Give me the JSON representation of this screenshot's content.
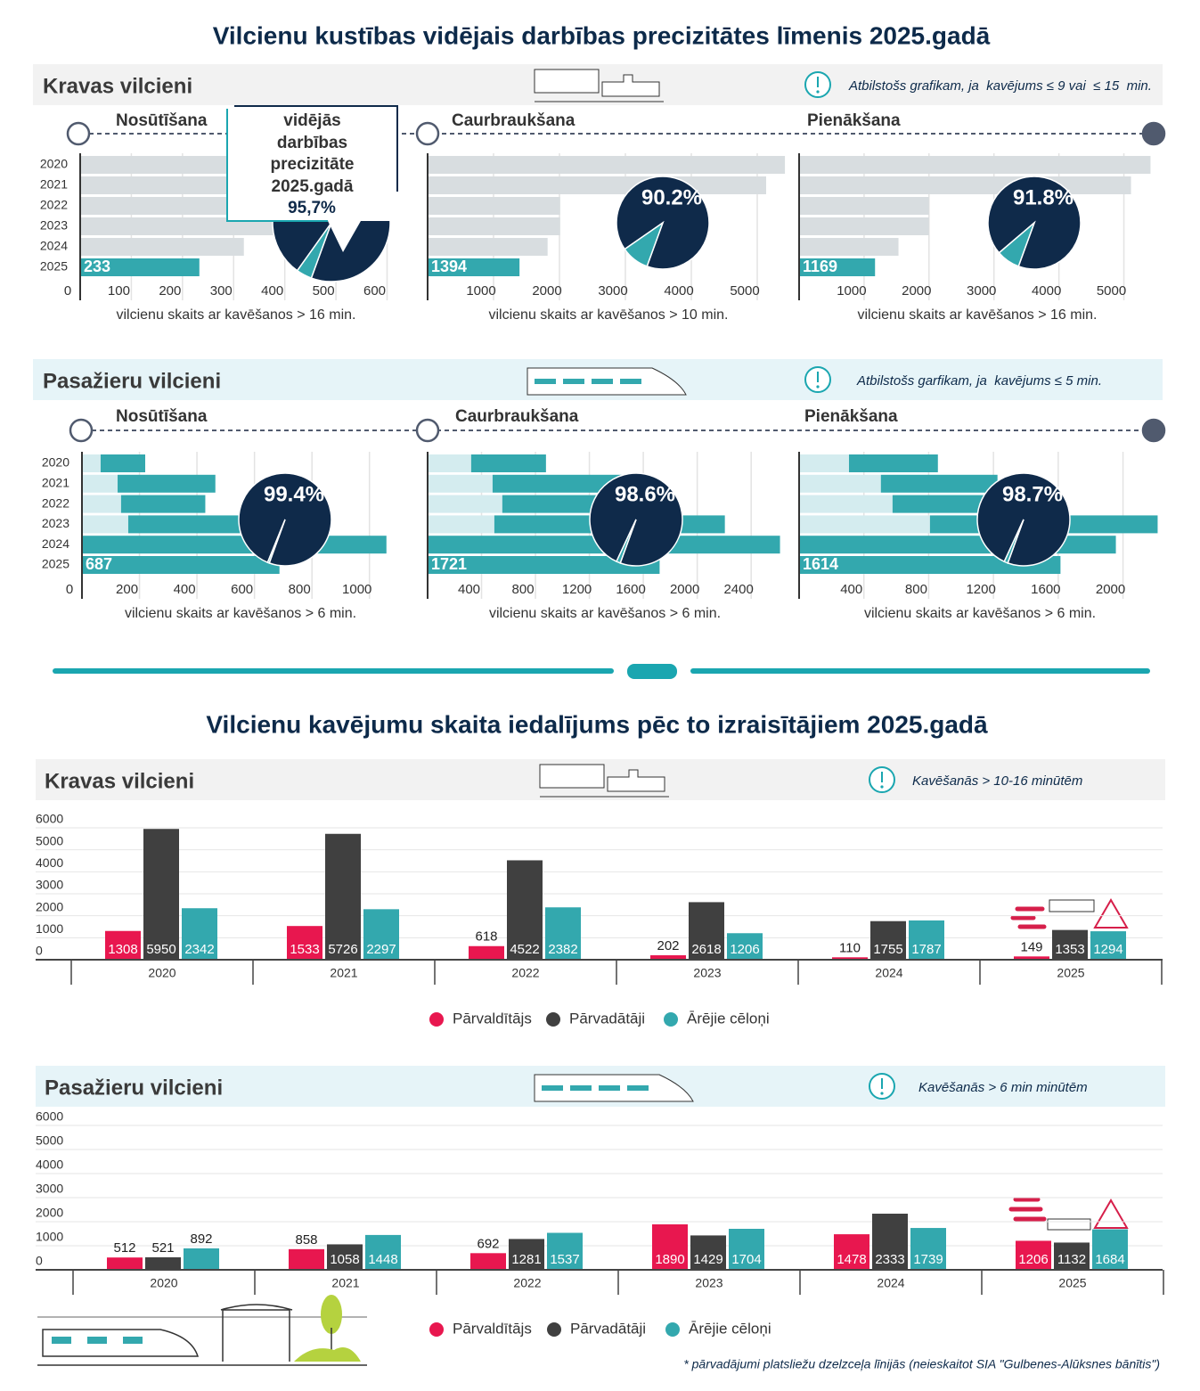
{
  "title": "Vilcienu kustības vidējais darbības precizitātes līmenis 2025.gadā",
  "title2": "Vilcienu kavējumu skaita iedalījums pēc to izraisītājiem 2025.gadā",
  "sections": [
    {
      "title": "Kravas vilcieni",
      "note": "Atbilstošs grafikam, ja  kavējums ≤ 9 vai  ≤ 15  min."
    },
    {
      "title": "Pasažieru vilcieni",
      "note": "Atbilstošs garfikam, ja  kavējums ≤ 5 min."
    },
    {
      "title": "Kravas vilcieni",
      "note": "Kavēšanās > 10-16 minūtēm"
    },
    {
      "title": "Pasažieru vilcieni",
      "note": "Kavēšanās > 6 min minūtēm"
    }
  ],
  "footnote": "* pārvadājumi platsliežu dzelzceļa līnijās (neieskaitot SIA \"Gulbenes-Alūksnes bānītis\")",
  "chart_data": [
    {
      "type": "barh",
      "stage": "Nosūtīšana",
      "xlabel": "vilcienu skaits ar kavēšanos > 16 min.",
      "categories": [
        "2020",
        "2021",
        "2022",
        "2023",
        "2024",
        "2025"
      ],
      "series": [
        {
          "color": "#d8dde0",
          "values": [
            620,
            600,
            560,
            450,
            320,
            null
          ]
        },
        {
          "color": "#33a8ae",
          "values": [
            null,
            null,
            null,
            null,
            null,
            233
          ]
        }
      ],
      "xlim": [
        0,
        620
      ],
      "xticks": [
        0,
        100,
        200,
        300,
        400,
        500,
        600
      ],
      "grid": true,
      "pie": {
        "type": "pie",
        "values": [
          95.7
        ],
        "value_labels": [
          "95,7%"
        ],
        "colors": [
          "#0f2a4a",
          "#33a8ae"
        ],
        "note": "vidējās darbības precizitāte 2025.gadā"
      }
    },
    {
      "type": "barh",
      "stage": "Caurbraukšana",
      "xlabel": "vilcienu skaits ar kavēšanos > 10 min.",
      "series": [
        {
          "color": "#d8dde0",
          "values": [
            5420,
            5135,
            2010,
            2010,
            1820,
            null
          ]
        },
        {
          "color": "#33a8ae",
          "values": [
            null,
            null,
            null,
            null,
            null,
            1394
          ]
        }
      ],
      "xlim": [
        0,
        5500
      ],
      "xticks": [
        1000,
        2000,
        3000,
        4000,
        5000
      ],
      "grid": true,
      "pie": {
        "type": "pie",
        "values": [
          90.2
        ],
        "value_labels": [
          "90.2%"
        ],
        "colors": [
          "#0f2a4a",
          "#33a8ae"
        ]
      }
    },
    {
      "type": "barh",
      "stage": "Pienākšana",
      "xlabel": "vilcienu skaits ar kavēšanos > 16 min.",
      "series": [
        {
          "color": "#d8dde0",
          "values": [
            5410,
            5110,
            2000,
            2000,
            1530,
            null
          ]
        },
        {
          "color": "#33a8ae",
          "values": [
            null,
            null,
            null,
            null,
            null,
            1169
          ]
        }
      ],
      "xlim": [
        0,
        5500
      ],
      "xticks": [
        1000,
        2000,
        3000,
        4000,
        5000
      ],
      "grid": true,
      "pie": {
        "type": "pie",
        "values": [
          91.8
        ],
        "value_labels": [
          "91.8%"
        ],
        "colors": [
          "#0f2a4a",
          "#33a8ae"
        ]
      }
    },
    {
      "type": "barh",
      "stage": "Nosūtīšana",
      "xlabel": "vilcienu skaits ar kavēšanos > 6 min.",
      "categories": [
        "2020",
        "2021",
        "2022",
        "2023",
        "2024",
        "2025"
      ],
      "series": [
        {
          "color": "#d4ecef",
          "values": [
            65,
            124,
            136,
            161,
            null,
            null
          ]
        },
        {
          "color": "#33a8ae",
          "values": [
            155,
            340,
            293,
            580,
            1059,
            687
          ]
        }
      ],
      "xlim": [
        0,
        1100
      ],
      "xticks": [
        0,
        200,
        400,
        600,
        800,
        1000
      ],
      "grid": true,
      "pie": {
        "type": "pie",
        "values": [
          99.4
        ],
        "value_labels": [
          "99.4%"
        ],
        "colors": [
          "#0f2a4a",
          "#33a8ae"
        ]
      }
    },
    {
      "type": "barh",
      "stage": "Caurbraukšana",
      "xlabel": "vilcienu skaits ar kavēšanos > 6 min.",
      "series": [
        {
          "color": "#d4ecef",
          "values": [
            323,
            482,
            554,
            495,
            null,
            null
          ]
        },
        {
          "color": "#33a8ae",
          "values": [
            555,
            970,
            830,
            1710,
            2614,
            1721
          ]
        }
      ],
      "xlim": [
        0,
        2650
      ],
      "xticks": [
        400,
        800,
        1200,
        1600,
        2000,
        2400
      ],
      "grid": true,
      "pie": {
        "type": "pie",
        "values": [
          98.6
        ],
        "value_labels": [
          "98.6%"
        ],
        "colors": [
          "#0f2a4a",
          "#33a8ae"
        ]
      }
    },
    {
      "type": "barh",
      "stage": "Pienākšana",
      "xlabel": "vilcienu skaits ar kavēšanos > 6 min.",
      "series": [
        {
          "color": "#d4ecef",
          "values": [
            308,
            505,
            577,
            808,
            null,
            null
          ]
        },
        {
          "color": "#33a8ae",
          "values": [
            549,
            720,
            593,
            1406,
            1956,
            1614
          ]
        }
      ],
      "xlim": [
        0,
        2250
      ],
      "xticks": [
        400,
        800,
        1200,
        1600,
        2000
      ],
      "grid": true,
      "pie": {
        "type": "pie",
        "values": [
          98.7
        ],
        "value_labels": [
          "98.7%"
        ],
        "colors": [
          "#0f2a4a",
          "#33a8ae"
        ]
      }
    },
    {
      "type": "bar",
      "categories": [
        "2020",
        "2021",
        "2022",
        "2023",
        "2024",
        "2025"
      ],
      "series": [
        {
          "name": "Pārvaldītājs",
          "color": "#e8174f",
          "values": [
            1308,
            1533,
            618,
            202,
            110,
            149
          ]
        },
        {
          "name": "Pārvadātāji",
          "color": "#404040",
          "values": [
            5950,
            5726,
            4522,
            2618,
            1755,
            1353
          ]
        },
        {
          "name": "Ārējie cēloņi",
          "color": "#33a8ae",
          "values": [
            2342,
            2297,
            2382,
            1206,
            1787,
            1294
          ]
        }
      ],
      "ylim": [
        0,
        6000
      ],
      "yticks": [
        0,
        1000,
        2000,
        3000,
        4000,
        5000,
        6000
      ],
      "grid": true
    },
    {
      "type": "bar",
      "categories": [
        "2020",
        "2021",
        "2022",
        "2023",
        "2024",
        "2025"
      ],
      "series": [
        {
          "name": "Pārvaldītājs",
          "color": "#e8174f",
          "values": [
            512,
            858,
            692,
            1890,
            1478,
            1206
          ]
        },
        {
          "name": "Pārvadātāji",
          "color": "#404040",
          "values": [
            521,
            1058,
            1281,
            1429,
            2333,
            1132
          ]
        },
        {
          "name": "Ārējie cēloņi",
          "color": "#33a8ae",
          "values": [
            892,
            1448,
            1537,
            1704,
            1739,
            1684
          ]
        }
      ],
      "ylim": [
        0,
        6000
      ],
      "yticks": [
        0,
        1000,
        2000,
        3000,
        4000,
        5000,
        6000
      ],
      "grid": true
    }
  ]
}
